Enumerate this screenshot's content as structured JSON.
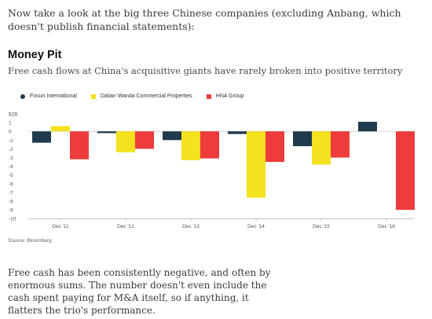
{
  "article": {
    "intro": "Now take a look at the big three Chinese companies (excluding Anbang, which doesn't publish financial statements):",
    "body": "Free cash has been consistently negative, and often by enormous sums. The number doesn't even include the cash spent paying for M&A itself, so if anything, it flatters the trio's performance."
  },
  "chart_data": {
    "type": "bar",
    "title": "Money Pit",
    "subtitle": "Free cash flows at China's acquisitive giants have rarely broken into positive territory",
    "source": "Source: Bloomberg",
    "categories": [
      "Dec '11",
      "Dec '12",
      "Dec '13",
      "Dec '14",
      "Dec '15",
      "Dec '16"
    ],
    "series": [
      {
        "name": "Fosun International",
        "color": "#1f3a4d",
        "marker": "dot",
        "values": [
          -1.3,
          -0.2,
          -1.0,
          -0.3,
          -1.7,
          1.1
        ]
      },
      {
        "name": "Dalian Wanda Commercial Properties",
        "color": "#f5e11e",
        "marker": "square",
        "values": [
          0.6,
          -2.4,
          -3.3,
          -7.6,
          -3.8,
          null
        ]
      },
      {
        "name": "HNA Group",
        "color": "#ee3b3b",
        "marker": "square",
        "values": [
          -3.2,
          -2.0,
          -3.1,
          -3.5,
          -3.0,
          -9.0
        ]
      }
    ],
    "ylim": [
      -10,
      2
    ],
    "yticks": [
      2,
      1,
      0,
      -1,
      -2,
      -3,
      -4,
      -5,
      -6,
      -7,
      -8,
      -9,
      -10
    ],
    "ytick_labels": [
      "$2B",
      "1",
      "0",
      "-1",
      "-2",
      "-3",
      "-4",
      "-5",
      "-6",
      "-7",
      "-8",
      "-9",
      "-10"
    ],
    "grid": false,
    "legend_position": "top-left"
  }
}
